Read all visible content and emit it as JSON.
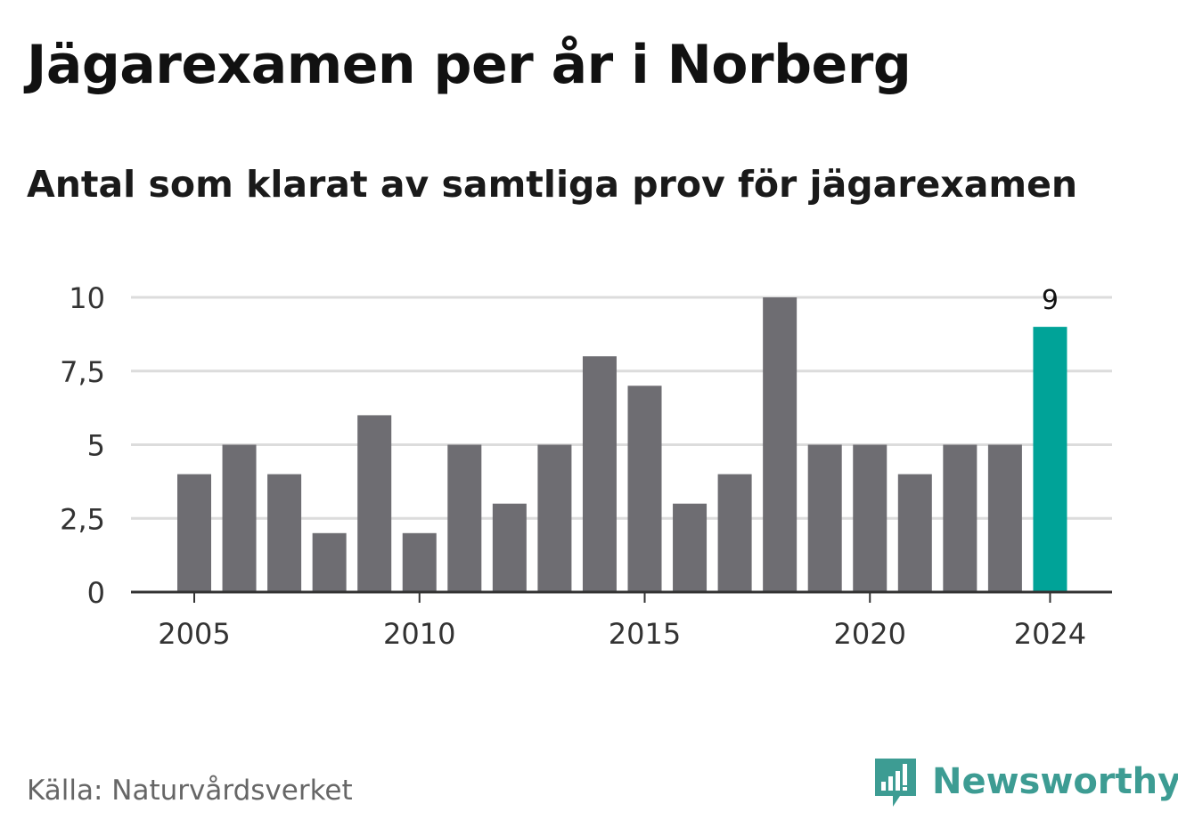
{
  "title": "Jägarexamen per år i Norberg",
  "subtitle": "Antal som klarat av samtliga prov för jägarexamen",
  "source": "Källa: Naturvårdsverket",
  "brand": "Newsworthy",
  "colors": {
    "bar": "#6e6d72",
    "highlight": "#00a398",
    "grid": "#dcdcdc",
    "axis": "#333333",
    "brand": "#3d9c93"
  },
  "chart_data": {
    "type": "bar",
    "x": [
      2005,
      2006,
      2007,
      2008,
      2009,
      2010,
      2011,
      2012,
      2013,
      2014,
      2015,
      2016,
      2017,
      2018,
      2019,
      2020,
      2021,
      2022,
      2023,
      2024
    ],
    "values": [
      4,
      5,
      4,
      2,
      6,
      2,
      5,
      3,
      5,
      8,
      7,
      3,
      4,
      10,
      5,
      5,
      4,
      5,
      5,
      9
    ],
    "highlight_index": 19,
    "highlight_label": "9",
    "ylim": [
      0,
      10
    ],
    "yticks": [
      0,
      2.5,
      5,
      7.5,
      10
    ],
    "ytick_labels": [
      "0",
      "2,5",
      "5",
      "7,5",
      "10"
    ],
    "xtick_values": [
      2005,
      2010,
      2015,
      2020,
      2024
    ],
    "xtick_labels": [
      "2005",
      "2010",
      "2015",
      "2020",
      "2024"
    ],
    "grid": true,
    "legend": false
  }
}
